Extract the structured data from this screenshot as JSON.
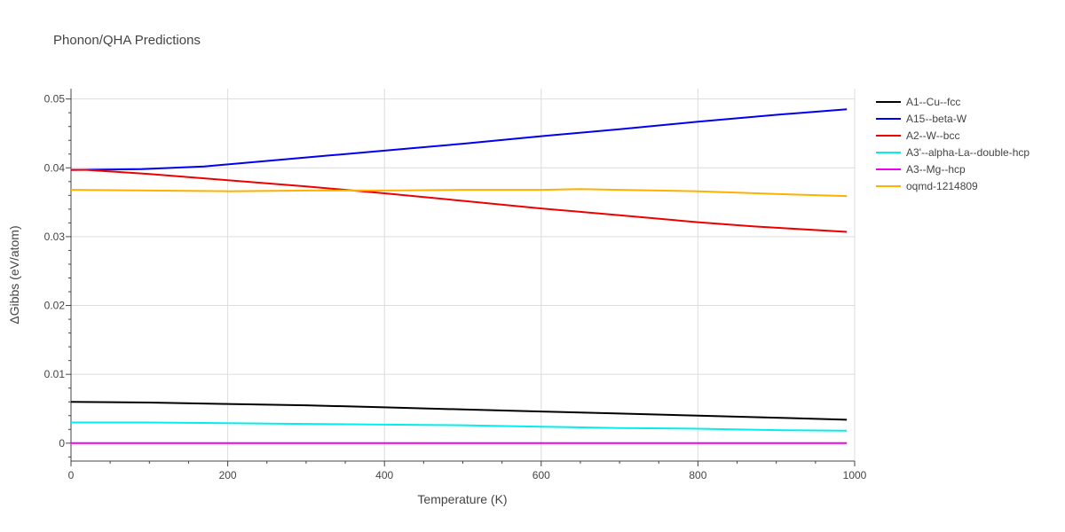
{
  "chart_data": {
    "type": "line",
    "title": "Phonon/QHA Predictions",
    "xlabel": "Temperature (K)",
    "ylabel": "ΔGibbs (eV/atom)",
    "xlim": [
      0,
      1000
    ],
    "ylim": [
      -0.0026,
      0.0515
    ],
    "xticks": [
      0,
      200,
      400,
      600,
      800,
      1000
    ],
    "xtick_labels": [
      "0",
      "200",
      "400",
      "600",
      "800",
      "1000"
    ],
    "yticks": [
      0,
      0.01,
      0.02,
      0.03,
      0.04,
      0.05
    ],
    "ytick_labels": [
      "0",
      "0.01",
      "0.02",
      "0.03",
      "0.04",
      "0.05"
    ],
    "grid": true,
    "legend_position": "right",
    "series": [
      {
        "name": "A1--Cu--fcc",
        "color": "#000000",
        "x": [
          0,
          100,
          200,
          300,
          400,
          500,
          600,
          700,
          800,
          900,
          990
        ],
        "y": [
          0.006,
          0.0059,
          0.0057,
          0.0055,
          0.0052,
          0.0049,
          0.0046,
          0.0043,
          0.004,
          0.0037,
          0.0034
        ]
      },
      {
        "name": "A15--beta-W",
        "color": "#0000ee",
        "x": [
          0,
          90,
          170,
          250,
          330,
          400,
          500,
          600,
          700,
          800,
          900,
          990
        ],
        "y": [
          0.0397,
          0.0398,
          0.0402,
          0.041,
          0.0418,
          0.0425,
          0.0435,
          0.0446,
          0.0456,
          0.0467,
          0.0477,
          0.0485
        ]
      },
      {
        "name": "A2--W--bcc",
        "color": "#ee0000",
        "x": [
          0,
          20,
          100,
          200,
          300,
          400,
          500,
          600,
          700,
          800,
          870,
          990
        ],
        "y": [
          0.0397,
          0.0397,
          0.0391,
          0.0382,
          0.0373,
          0.0363,
          0.0352,
          0.0341,
          0.0331,
          0.0321,
          0.0315,
          0.0307
        ]
      },
      {
        "name": "A3'--alpha-La--double-hcp",
        "color": "#00eeee",
        "x": [
          0,
          100,
          200,
          300,
          400,
          500,
          600,
          700,
          800,
          900,
          990
        ],
        "y": [
          0.003,
          0.003,
          0.0029,
          0.0028,
          0.0027,
          0.0026,
          0.0024,
          0.0022,
          0.0021,
          0.0019,
          0.0018
        ]
      },
      {
        "name": "A3--Mg--hcp",
        "color": "#ee00ee",
        "x": [
          0,
          990
        ],
        "y": [
          0.0,
          0.0
        ]
      },
      {
        "name": "oqmd-1214809",
        "color": "#ffb000",
        "x": [
          0,
          100,
          200,
          300,
          400,
          500,
          600,
          650,
          700,
          800,
          900,
          990
        ],
        "y": [
          0.0368,
          0.0367,
          0.0366,
          0.0367,
          0.0367,
          0.0368,
          0.0368,
          0.0369,
          0.0368,
          0.0366,
          0.0362,
          0.0359
        ]
      }
    ]
  }
}
